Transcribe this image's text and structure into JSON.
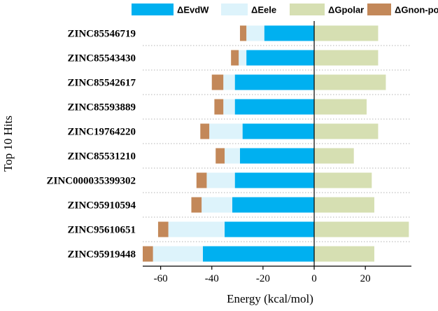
{
  "chart_data": {
    "type": "bar",
    "orientation": "horizontal",
    "stacked": true,
    "title": "",
    "xlabel": "Energy (kcal/mol)",
    "ylabel": "Top 10 Hits",
    "xlim": [
      -67,
      38
    ],
    "xticks": [
      -60,
      -40,
      -20,
      0,
      20
    ],
    "grid": "dotted horizontal",
    "legend_position": "top",
    "categories": [
      "ZINC85546719",
      "ZINC85543430",
      "ZINC85542617",
      "ZINC85593889",
      "ZINC19764220",
      "ZINC85531210",
      "ZINC000035399302",
      "ZINC95910594",
      "ZINC95610651",
      "ZINC95919448"
    ],
    "series": [
      {
        "name": "ΔEvdW",
        "color": "#00b0f0",
        "values": [
          -19.5,
          -26.5,
          -31,
          -31,
          -28,
          -29,
          -31,
          -32,
          -35,
          -43.5
        ]
      },
      {
        "name": "ΔEele",
        "color": "#ddf3fb",
        "values": [
          -7,
          -3,
          -4.5,
          -4.5,
          -13,
          -6,
          -11,
          -12,
          -22,
          -19.5
        ]
      },
      {
        "name": "ΔGpolar",
        "color": "#d6dfb2",
        "values": [
          25,
          25,
          28,
          20.5,
          25,
          15.5,
          22.5,
          23.5,
          37,
          23.5
        ]
      },
      {
        "name": "ΔGnon-polar",
        "color": "#c38859",
        "values": [
          -2.5,
          -3,
          -4.5,
          -3.5,
          -3.5,
          -3.5,
          -4,
          -4,
          -4,
          -4
        ]
      }
    ]
  }
}
